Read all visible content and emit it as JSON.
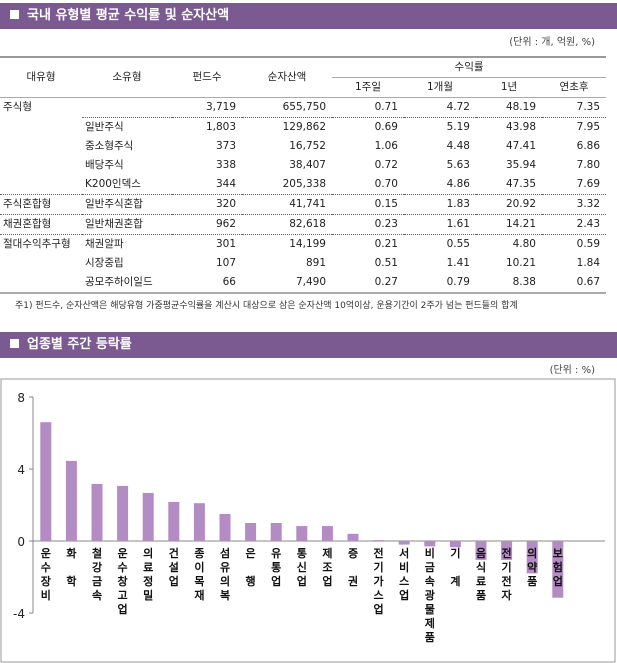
{
  "table_section": {
    "title": "국내 유형별 평균 수익률 및 순자산액",
    "unit": "(단위 : 개, 억원, %)",
    "headers": {
      "major": "대유형",
      "minor": "소유형",
      "count": "펀드수",
      "assets": "순자산액",
      "returns": "수익률",
      "w1": "1주일",
      "m1": "1개월",
      "y1": "1년",
      "ytd": "연초후"
    },
    "rows": [
      [
        "주식형",
        "",
        "3,719",
        "655,750",
        "0.71",
        "4.72",
        "48.19",
        "7.35"
      ],
      [
        "",
        "일반주식",
        "1,803",
        "129,862",
        "0.69",
        "5.19",
        "43.98",
        "7.95"
      ],
      [
        "",
        "중소형주식",
        "373",
        "16,752",
        "1.06",
        "4.48",
        "47.41",
        "6.86"
      ],
      [
        "",
        "배당주식",
        "338",
        "38,407",
        "0.72",
        "5.63",
        "35.94",
        "7.80"
      ],
      [
        "",
        "K200인덱스",
        "344",
        "205,338",
        "0.70",
        "4.86",
        "47.35",
        "7.69"
      ],
      [
        "주식혼합형",
        "일반주식혼합",
        "320",
        "41,741",
        "0.15",
        "1.83",
        "20.92",
        "3.32"
      ],
      [
        "채권혼합형",
        "일반채권혼합",
        "962",
        "82,618",
        "0.23",
        "1.61",
        "14.21",
        "2.43"
      ],
      [
        "절대수익추구형",
        "채권알파",
        "301",
        "14,199",
        "0.21",
        "0.55",
        "4.80",
        "0.59"
      ],
      [
        "",
        "시장중립",
        "107",
        "891",
        "0.51",
        "1.41",
        "10.21",
        "1.84"
      ],
      [
        "",
        "공모주하이일드",
        "66",
        "7,490",
        "0.27",
        "0.79",
        "8.38",
        "0.67"
      ]
    ],
    "note": "주1) 펀드수, 순자산액은 해당유형 가중평균수익률을 계산시 대상으로 삼은 순자산액 10억이상, 운용기간이 2주가 넘는 펀드들의 합계"
  },
  "chart_section": {
    "title": "업종별 주간 등락률",
    "unit": "(단위 : %)"
  },
  "chart_data": {
    "type": "bar",
    "ylim": [
      -4,
      8
    ],
    "yticks": [
      "8",
      "4",
      "0",
      "-4"
    ],
    "bar_color": "#b48cc4",
    "categories": [
      "운수장비",
      "화 학",
      "철강금속",
      "운수창고업",
      "의료정밀",
      "건설업",
      "종이목재",
      "섬유의복",
      "은 행",
      "유통업",
      "통신업",
      "제조업",
      "증 권",
      "전기가스업",
      "서비스업",
      "비금속광물제품",
      "기 계",
      "음식료품",
      "전기전자",
      "의약품",
      "보험업"
    ],
    "values": [
      6.6,
      4.45,
      3.17,
      3.06,
      2.67,
      2.17,
      2.1,
      1.5,
      1.0,
      1.0,
      0.83,
      0.83,
      0.4,
      0.05,
      -0.2,
      -0.3,
      -0.35,
      -1.05,
      -1.05,
      -1.8,
      -3.15
    ]
  }
}
